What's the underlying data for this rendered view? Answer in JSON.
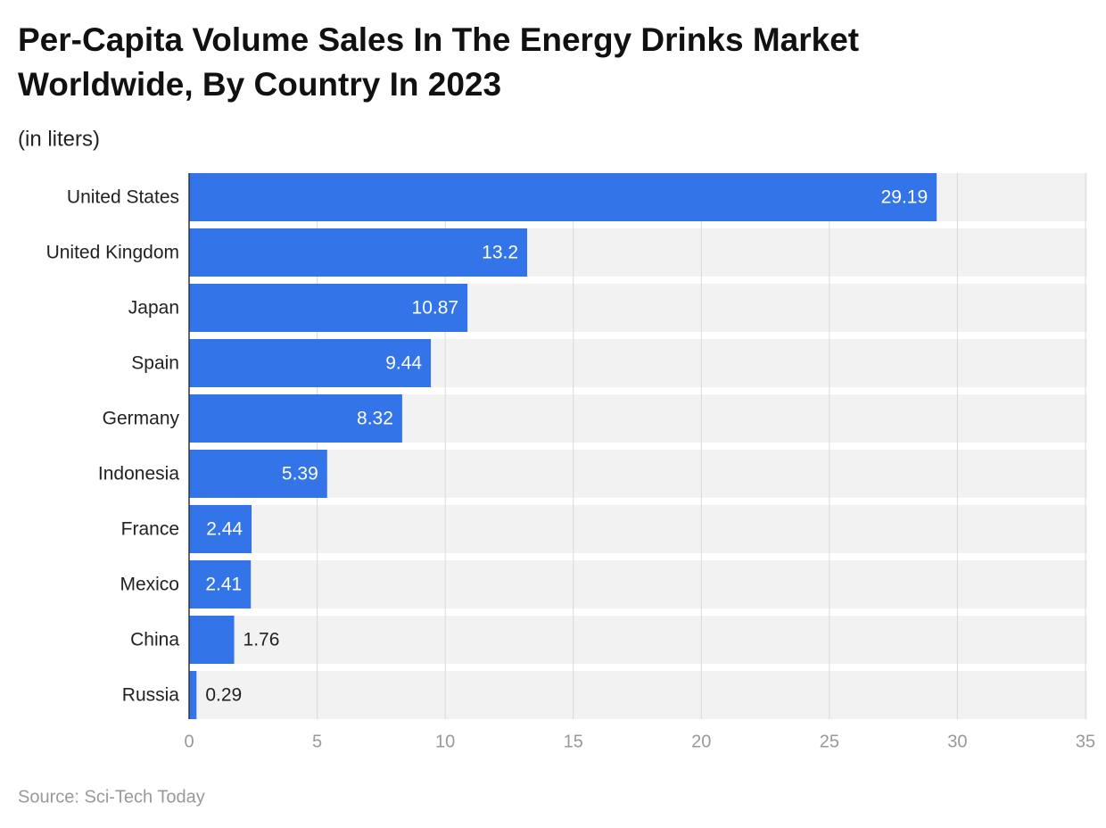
{
  "chart_data": {
    "type": "bar",
    "orientation": "horizontal",
    "title": [
      "Per-Capita Volume Sales In The Energy Drinks Market",
      "Worldwide, By Country In 2023"
    ],
    "subtitle": "(in liters)",
    "source": "Source: Sci-Tech Today",
    "categories": [
      "United States",
      "United Kingdom",
      "Japan",
      "Spain",
      "Germany",
      "Indonesia",
      "France",
      "Mexico",
      "China",
      "Russia"
    ],
    "values": [
      29.19,
      13.2,
      10.87,
      9.44,
      8.32,
      5.39,
      2.44,
      2.41,
      1.76,
      0.29
    ],
    "color": "#3374e8",
    "xlim": [
      0,
      35
    ],
    "xticks": [
      0,
      5,
      10,
      15,
      20,
      25,
      30,
      35
    ],
    "grid": true
  }
}
